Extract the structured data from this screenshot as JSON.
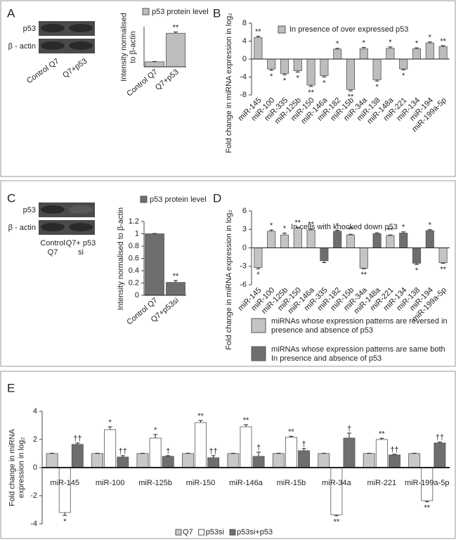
{
  "chart_data": [
    {
      "type": "bar",
      "panel": "A",
      "blot": {
        "rows": [
          "p53",
          "β - actin"
        ],
        "lanes": [
          "Control Q7",
          "Q7+p53"
        ]
      },
      "ylabel": [
        "Intensity normalised",
        "to β-actin"
      ],
      "categories": [
        "Control Q7",
        "Q7+p53"
      ],
      "series": [
        {
          "name": "p53 protein level",
          "color": "#bdbdbd",
          "values": [
            1,
            6.7
          ],
          "errors": [
            0.05,
            0.25
          ],
          "annotations": [
            null,
            "**"
          ]
        }
      ],
      "ylim": [
        0,
        8
      ]
    },
    {
      "type": "bar",
      "panel": "B",
      "ylabel": [
        "Fold change in miRNA expression in log₂"
      ],
      "categories": [
        "miR-145",
        "miR-100",
        "miR-335",
        "miR-125b",
        "miR-150",
        "miR-146a",
        "miR-182",
        "miR-15b",
        "miR-34a",
        "miR-138",
        "miR-148a",
        "miR-221",
        "miR-134",
        "miR-194",
        "miR-199a-5p"
      ],
      "series": [
        {
          "name": "In presence of over expressed p53",
          "color": "#bdbdbd",
          "values": [
            4.8,
            -2.2,
            -3.2,
            -2.6,
            -5.8,
            -3.7,
            2.2,
            -6.8,
            2.3,
            -4.6,
            2.4,
            -2.2,
            2.3,
            3.6,
            2.8
          ],
          "errors": [
            0.3,
            0.3,
            0.3,
            0.3,
            0.3,
            0.3,
            0.2,
            0.3,
            0.3,
            0.3,
            0.3,
            0.2,
            0.2,
            0.2,
            0.2
          ],
          "annotations": [
            "**",
            "*",
            "*",
            "*",
            "**",
            "*",
            "*",
            "**",
            "*",
            "*",
            "*",
            "*",
            "*",
            "*",
            "**"
          ]
        }
      ],
      "ylim": [
        -8,
        8
      ],
      "yticks": [
        -8,
        -4,
        0,
        4,
        8
      ]
    },
    {
      "type": "bar",
      "panel": "C",
      "blot": {
        "rows": [
          "p53",
          "β - actin"
        ],
        "lanes": [
          "Control Q7",
          "Q7+ p53 si"
        ]
      },
      "ylabel": [
        "Intensity normalised to β-actin"
      ],
      "categories": [
        "Control Q7",
        "Q7+p53si"
      ],
      "series": [
        {
          "name": "p53 protein level",
          "color": "#6e6e6e",
          "values": [
            1,
            0.21
          ],
          "errors": [
            0.005,
            0.03
          ],
          "annotations": [
            null,
            "**"
          ]
        }
      ],
      "ylim": [
        0,
        1.2
      ],
      "yticks": [
        0,
        0.2,
        0.4,
        0.6,
        0.8,
        1,
        1.2
      ]
    },
    {
      "type": "bar",
      "panel": "D",
      "title": "In cells with knocked down p53",
      "ylabel": [
        "Fold change in miRNA expression in log₂"
      ],
      "categories": [
        "miR-145",
        "miR-100",
        "miR-125b",
        "miR-150",
        "miR-146a",
        "miR-335",
        "miR-182",
        "miR-15b",
        "miR-34a",
        "miR-148a",
        "miR-221",
        "miR-134",
        "miR-138",
        "miR-194",
        "miR-199a-5p"
      ],
      "series": [
        {
          "name": "miRNAs whose expression patterns are reversed in presence and absence of p53",
          "color": "#c4c4c4",
          "values": [
            -3.2,
            2.7,
            2.1,
            3.2,
            2.9,
            null,
            null,
            2.1,
            -3.3,
            null,
            2.0,
            null,
            null,
            null,
            -2.4
          ],
          "errors": [
            0.2,
            0.2,
            0.3,
            0.15,
            0.15,
            null,
            null,
            0.1,
            0.1,
            null,
            0.1,
            null,
            null,
            null,
            0.1
          ],
          "annotations": [
            "*",
            "*",
            "*",
            "**",
            "**",
            null,
            null,
            "**",
            "**",
            null,
            "**",
            null,
            null,
            null,
            "**"
          ]
        },
        {
          "name": "miRNAs whose expression patterns are same both In presence and absence of p53",
          "color": "#6e6e6e",
          "values": [
            null,
            null,
            null,
            null,
            null,
            -2.1,
            2.7,
            null,
            null,
            2.3,
            null,
            2.4,
            -2.5,
            2.8,
            null
          ],
          "errors": [
            null,
            null,
            null,
            null,
            null,
            0.3,
            0.15,
            null,
            null,
            0.15,
            null,
            0.2,
            0.2,
            0.15,
            null
          ],
          "annotations": [
            null,
            null,
            null,
            null,
            null,
            null,
            "*",
            null,
            null,
            null,
            null,
            "*",
            "*",
            "*",
            null
          ]
        }
      ],
      "ylim": [
        -6,
        6
      ],
      "yticks": [
        -6,
        -3,
        0,
        3,
        6
      ]
    },
    {
      "type": "grouped_bar",
      "panel": "E",
      "ylabel": [
        "Fold change in miRNA",
        "expression in log₂"
      ],
      "categories": [
        "miR-145",
        "miR-100",
        "miR-125b",
        "miR-150",
        "miR-146a",
        "miR-15b",
        "miR-34a",
        "miR-221",
        "miR-199a-5p"
      ],
      "series": [
        {
          "name": "Q7",
          "color": "#c8c8c8",
          "values": [
            1,
            1,
            1,
            1,
            1,
            1,
            1,
            1,
            1
          ],
          "errors": [
            0.02,
            0.02,
            0.02,
            0.02,
            0.02,
            0.02,
            0.02,
            0.02,
            0.02
          ],
          "annotations": [
            null,
            null,
            null,
            null,
            null,
            null,
            null,
            null,
            null
          ]
        },
        {
          "name": "p53si",
          "color": "#ffffff",
          "values": [
            -3.2,
            2.7,
            2.1,
            3.2,
            2.9,
            2.15,
            -3.35,
            2.0,
            -2.35
          ],
          "errors": [
            0.2,
            0.2,
            0.25,
            0.15,
            0.15,
            0.08,
            0.08,
            0.08,
            0.08
          ],
          "annotations": [
            "*",
            "*",
            "*",
            "**",
            "**",
            "**",
            "**",
            "**",
            "**"
          ]
        },
        {
          "name": "p53si+p53",
          "color": "#6e6e6e",
          "values": [
            1.65,
            0.75,
            0.8,
            0.7,
            0.8,
            1.2,
            2.1,
            0.9,
            1.75
          ],
          "errors": [
            0.1,
            0.1,
            0.05,
            0.15,
            0.3,
            0.15,
            0.35,
            0.05,
            0.06
          ],
          "annotations": [
            "††",
            "††",
            "†",
            "††",
            "†",
            "†",
            "†",
            "††",
            "††"
          ]
        }
      ],
      "ylim": [
        -4,
        4
      ],
      "yticks": [
        -4,
        -2,
        0,
        2,
        4
      ]
    }
  ]
}
